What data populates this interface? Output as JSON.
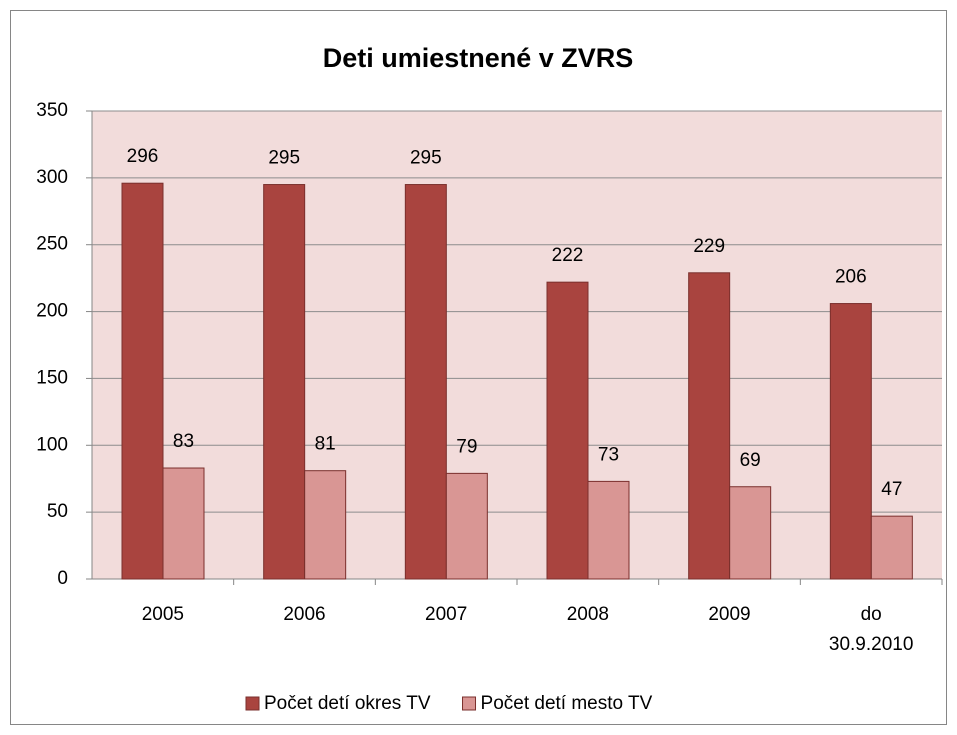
{
  "chart_data": {
    "type": "bar",
    "title": "Deti umiestnené v ZVRS",
    "categories": [
      "2005",
      "2006",
      "2007",
      "2008",
      "2009",
      "do 30.9.2010"
    ],
    "series": [
      {
        "name": "Počet detí okres TV",
        "color": "#a9443f",
        "values": [
          296,
          295,
          295,
          222,
          229,
          206
        ]
      },
      {
        "name": "Počet detí mesto TV",
        "color": "#d99694",
        "values": [
          83,
          81,
          79,
          73,
          69,
          47
        ]
      }
    ],
    "ylim": [
      0,
      350
    ],
    "yticks": [
      0,
      50,
      100,
      150,
      200,
      250,
      300,
      350
    ],
    "grid": true,
    "legend": "bottom"
  }
}
